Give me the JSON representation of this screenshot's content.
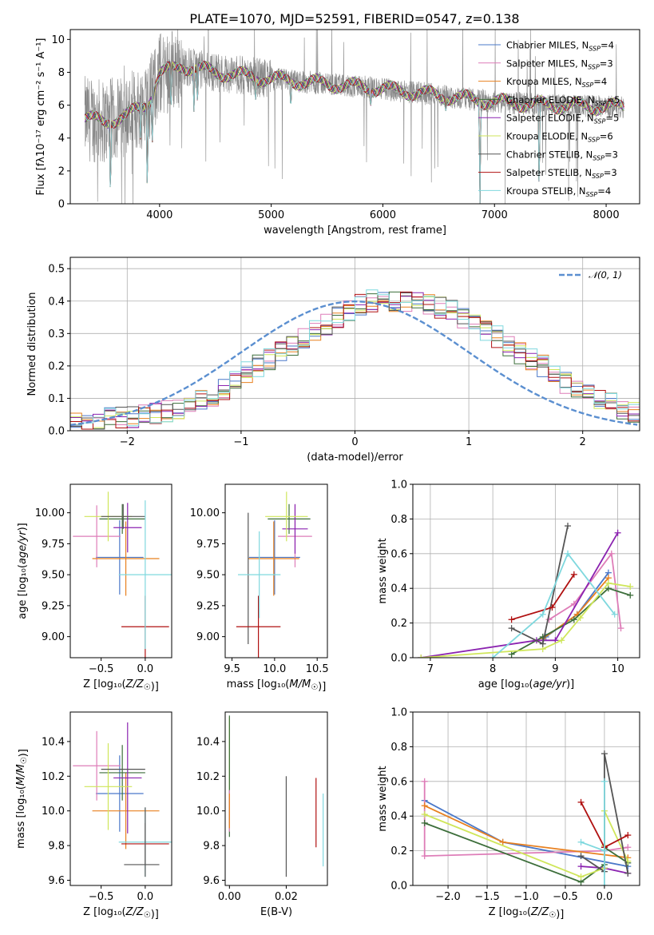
{
  "figure": {
    "title": "PLATE=1070, MJD=52591, FIBERID=0547, z=0.138"
  },
  "colors": {
    "Chabrier MILES": "#4a78c9",
    "Salpeter MILES": "#de7db8",
    "Kroupa MILES": "#e8801f",
    "Chabrier ELODIE": "#3c6e3a",
    "Salpeter ELODIE": "#8b23b0",
    "Kroupa ELODIE": "#cfe65a",
    "Chabrier STELIB": "#555555",
    "Salpeter STELIB": "#b01010",
    "Kroupa STELIB": "#7fd8de",
    "data": "#888888",
    "normal": "#5b8fd0"
  },
  "chart_data": [
    {
      "id": "spectrum",
      "type": "line",
      "title": "PLATE=1070, MJD=52591, FIBERID=0547, z=0.138",
      "xlabel": "wavelength [Angstrom, rest frame]",
      "ylabel": "Flux [fλ10⁻¹⁷ erg cm⁻² s⁻¹ A⁻¹]",
      "xlim": [
        3200,
        8300
      ],
      "ylim": [
        0,
        10.6
      ],
      "xticks": [
        4000,
        5000,
        6000,
        7000,
        8000
      ],
      "yticks": [
        0,
        2,
        4,
        6,
        8,
        10
      ],
      "legend_position": "top-right",
      "legend": [
        {
          "series": "Chabrier MILES",
          "label": "Chabrier MILES, N",
          "sub": "SSP",
          "suffix": "=4"
        },
        {
          "series": "Salpeter MILES",
          "label": "Salpeter MILES, N",
          "sub": "SSP",
          "suffix": "=3"
        },
        {
          "series": "Kroupa MILES",
          "label": "Kroupa MILES, N",
          "sub": "SSP",
          "suffix": "=4"
        },
        {
          "series": "Chabrier ELODIE",
          "label": "Chabrier ELODIE, N",
          "sub": "SSP",
          "suffix": "=5"
        },
        {
          "series": "Salpeter ELODIE",
          "label": "Salpeter ELODIE, N",
          "sub": "SSP",
          "suffix": "=5"
        },
        {
          "series": "Kroupa ELODIE",
          "label": "Kroupa ELODIE, N",
          "sub": "SSP",
          "suffix": "=6"
        },
        {
          "series": "Chabrier STELIB",
          "label": "Chabrier STELIB, N",
          "sub": "SSP",
          "suffix": "=3"
        },
        {
          "series": "Salpeter STELIB",
          "label": "Salpeter STELIB, N",
          "sub": "SSP",
          "suffix": "=3"
        },
        {
          "series": "Kroupa STELIB",
          "label": "Kroupa STELIB, N",
          "sub": "SSP",
          "suffix": "=4"
        }
      ],
      "continuum": [
        [
          3330,
          5.2
        ],
        [
          3500,
          5.0
        ],
        [
          3700,
          5.3
        ],
        [
          3900,
          6.2
        ],
        [
          4000,
          7.9
        ],
        [
          4200,
          8.4
        ],
        [
          4500,
          8.0
        ],
        [
          5000,
          7.6
        ],
        [
          5500,
          7.3
        ],
        [
          6000,
          7.0
        ],
        [
          6500,
          6.6
        ],
        [
          7000,
          6.2
        ],
        [
          7500,
          6.0
        ],
        [
          8000,
          5.9
        ],
        [
          8160,
          5.9
        ]
      ],
      "absorption_lines": [
        [
          3560,
          0.0
        ],
        [
          3830,
          3.4
        ],
        [
          3890,
          0.0
        ],
        [
          3934,
          3.0
        ],
        [
          4102,
          5.4
        ],
        [
          4308,
          5.6
        ],
        [
          4340,
          5.8
        ],
        [
          4861,
          6.2
        ],
        [
          5175,
          5.6
        ],
        [
          5890,
          5.8
        ],
        [
          6563,
          5.6
        ],
        [
          6870,
          0.0
        ],
        [
          7400,
          0.0
        ]
      ]
    },
    {
      "id": "residuals",
      "type": "bar",
      "xlabel": "(data-model)/error",
      "ylabel": "Normed distribution",
      "xlim": [
        -2.5,
        2.5
      ],
      "ylim": [
        0,
        0.535
      ],
      "xticks": [
        -2,
        -1,
        0,
        1,
        2
      ],
      "yticks": [
        0.0,
        0.1,
        0.2,
        0.3,
        0.4,
        0.5
      ],
      "legend": "𝒩(0, 1)",
      "legend_position": "top-right",
      "bin_width": 0.1,
      "bin_start": -2.5,
      "reference_values": [
        0.02,
        0.02,
        0.03,
        0.04,
        0.04,
        0.04,
        0.05,
        0.05,
        0.06,
        0.07,
        0.09,
        0.1,
        0.11,
        0.13,
        0.15,
        0.18,
        0.2,
        0.22,
        0.24,
        0.26,
        0.29,
        0.31,
        0.33,
        0.35,
        0.37,
        0.39,
        0.4,
        0.4,
        0.4,
        0.4,
        0.4,
        0.39,
        0.38,
        0.37,
        0.35,
        0.33,
        0.31,
        0.29,
        0.26,
        0.24,
        0.22,
        0.2,
        0.18,
        0.15,
        0.13,
        0.11,
        0.1,
        0.09,
        0.07,
        0.06
      ]
    },
    {
      "id": "age-vs-z",
      "type": "scatter",
      "xlabel": "Z [log₁₀(Z/Z☉)]",
      "ylabel": "age  [log₁₀(age/yr)]",
      "xlim": [
        -0.85,
        0.3
      ],
      "ylim": [
        8.83,
        10.23
      ],
      "xticks": [
        -0.5,
        0.0
      ],
      "yticks": [
        9.0,
        9.25,
        9.5,
        9.75,
        10.0
      ],
      "points": [
        {
          "series": "Chabrier MILES",
          "x": -0.29,
          "xerr": 0.27,
          "y": 9.64,
          "yerr": 0.3
        },
        {
          "series": "Salpeter MILES",
          "x": -0.55,
          "xerr": 0.27,
          "y": 9.81,
          "yerr": 0.25
        },
        {
          "series": "Kroupa MILES",
          "x": -0.22,
          "xerr": 0.38,
          "y": 9.63,
          "yerr": 0.3
        },
        {
          "series": "Chabrier ELODIE",
          "x": -0.26,
          "xerr": 0.26,
          "y": 9.95,
          "yerr": 0.12
        },
        {
          "series": "Salpeter ELODIE",
          "x": -0.2,
          "xerr": 0.16,
          "y": 9.88,
          "yerr": 0.2
        },
        {
          "series": "Kroupa ELODIE",
          "x": -0.42,
          "xerr": 0.27,
          "y": 9.97,
          "yerr": 0.2
        },
        {
          "series": "Chabrier STELIB",
          "x": -0.25,
          "xerr": 0.25,
          "y": 9.97,
          "yerr": 0.1
        },
        {
          "series": "Salpeter STELIB",
          "x": 0.0,
          "xerr": 0.27,
          "y": 9.08,
          "yerr": 0.25
        },
        {
          "series": "Kroupa STELIB",
          "x": 0.0,
          "xerr": 0.3,
          "y": 9.5,
          "yerr": 0.6
        }
      ]
    },
    {
      "id": "age-vs-mass",
      "type": "scatter",
      "xlabel": "mass [log₁₀(M/M☉)]",
      "ylabel": "",
      "xlim": [
        9.42,
        10.62
      ],
      "ylim": [
        8.83,
        10.23
      ],
      "xticks": [
        9.5,
        10.0,
        10.5
      ],
      "yticks": [
        9.0,
        9.25,
        9.5,
        9.75,
        10.0
      ],
      "points": [
        {
          "series": "Chabrier MILES",
          "x": 10.0,
          "xerr": 0.3,
          "y": 9.64,
          "yerr": 0.3
        },
        {
          "series": "Salpeter MILES",
          "x": 10.24,
          "xerr": 0.2,
          "y": 9.81,
          "yerr": 0.25
        },
        {
          "series": "Kroupa MILES",
          "x": 9.99,
          "xerr": 0.3,
          "y": 9.63,
          "yerr": 0.3
        },
        {
          "series": "Chabrier ELODIE",
          "x": 10.17,
          "xerr": 0.25,
          "y": 9.95,
          "yerr": 0.12
        },
        {
          "series": "Salpeter ELODIE",
          "x": 10.24,
          "xerr": 0.15,
          "y": 9.87,
          "yerr": 0.2
        },
        {
          "series": "Kroupa ELODIE",
          "x": 10.14,
          "xerr": 0.25,
          "y": 9.97,
          "yerr": 0.2
        },
        {
          "series": "Chabrier STELIB",
          "x": 9.69,
          "xerr": 0.0,
          "y": 9.47,
          "yerr": 0.53
        },
        {
          "series": "Salpeter STELIB",
          "x": 9.81,
          "xerr": 0.26,
          "y": 9.08,
          "yerr": 0.25
        },
        {
          "series": "Kroupa STELIB",
          "x": 9.82,
          "xerr": 0.25,
          "y": 9.5,
          "yerr": 0.35
        }
      ]
    },
    {
      "id": "massweight-vs-age",
      "type": "line",
      "xlabel": "age  [log₁₀(age/yr)]",
      "ylabel": "mass weight",
      "xlim": [
        6.72,
        10.35
      ],
      "ylim": [
        0,
        1.0
      ],
      "xticks": [
        7,
        8,
        9,
        10
      ],
      "yticks": [
        0.0,
        0.2,
        0.4,
        0.6,
        0.8,
        1.0
      ],
      "series": [
        {
          "name": "Chabrier MILES",
          "x": [
            8.85,
            9.35,
            9.85
          ],
          "y": [
            0.12,
            0.25,
            0.49
          ]
        },
        {
          "name": "Salpeter MILES",
          "x": [
            8.9,
            9.3,
            9.9,
            10.05
          ],
          "y": [
            0.22,
            0.31,
            0.6,
            0.17
          ]
        },
        {
          "name": "Kroupa MILES",
          "x": [
            8.8,
            9.35,
            9.85
          ],
          "y": [
            0.11,
            0.25,
            0.46
          ]
        },
        {
          "name": "Chabrier ELODIE",
          "x": [
            8.3,
            8.8,
            9.3,
            9.85,
            10.2
          ],
          "y": [
            0.02,
            0.12,
            0.22,
            0.4,
            0.36
          ]
        },
        {
          "name": "Salpeter ELODIE",
          "x": [
            6.85,
            8.7,
            9.0,
            10.0
          ],
          "y": [
            0.0,
            0.1,
            0.1,
            0.72
          ]
        },
        {
          "name": "Kroupa ELODIE",
          "x": [
            6.85,
            8.8,
            9.1,
            9.4,
            9.85,
            10.2
          ],
          "y": [
            0.0,
            0.05,
            0.1,
            0.23,
            0.43,
            0.41
          ]
        },
        {
          "name": "Chabrier STELIB",
          "x": [
            8.3,
            8.8,
            9.2
          ],
          "y": [
            0.17,
            0.08,
            0.76
          ]
        },
        {
          "name": "Salpeter STELIB",
          "x": [
            8.3,
            8.95,
            9.3
          ],
          "y": [
            0.22,
            0.29,
            0.48
          ]
        },
        {
          "name": "Kroupa STELIB",
          "x": [
            8.0,
            8.8,
            9.2,
            9.95
          ],
          "y": [
            0.0,
            0.25,
            0.6,
            0.25
          ]
        }
      ]
    },
    {
      "id": "mass-vs-z",
      "type": "scatter",
      "xlabel": "Z [log₁₀(Z/Z☉)]",
      "ylabel": "mass [log₁₀(M/M☉)]",
      "xlim": [
        -0.85,
        0.3
      ],
      "ylim": [
        9.57,
        10.57
      ],
      "xticks": [
        -0.5,
        0.0
      ],
      "yticks": [
        9.6,
        9.8,
        10.0,
        10.2,
        10.4
      ],
      "points": [
        {
          "series": "Chabrier MILES",
          "x": -0.29,
          "xerr": 0.27,
          "y": 10.1,
          "yerr": 0.22
        },
        {
          "series": "Salpeter MILES",
          "x": -0.55,
          "xerr": 0.27,
          "y": 10.26,
          "yerr": 0.2
        },
        {
          "series": "Kroupa MILES",
          "x": -0.22,
          "xerr": 0.38,
          "y": 10.0,
          "yerr": 0.22
        },
        {
          "series": "Chabrier ELODIE",
          "x": -0.26,
          "xerr": 0.26,
          "y": 10.22,
          "yerr": 0.16
        },
        {
          "series": "Salpeter ELODIE",
          "x": -0.2,
          "xerr": 0.16,
          "y": 10.19,
          "yerr": 0.32
        },
        {
          "series": "Kroupa ELODIE",
          "x": -0.42,
          "xerr": 0.27,
          "y": 10.14,
          "yerr": 0.25
        },
        {
          "series": "Chabrier STELIB",
          "x": -0.25,
          "xerr": 0.25,
          "y": 10.24,
          "yerr": 0.0
        },
        {
          "series": "Salpeter STELIB",
          "x": 0.0,
          "xerr": 0.27,
          "y": 9.81,
          "yerr": 0.12
        },
        {
          "series": "Kroupa STELIB",
          "x": 0.0,
          "xerr": 0.3,
          "y": 9.82,
          "yerr": 0.2
        },
        {
          "series": "Chabrier STELIB",
          "x": -0.04,
          "xerr": 0.2,
          "y": 9.69,
          "yerr": 0.0
        },
        {
          "series": "Chabrier STELIB",
          "x": 0.0,
          "xerr": 0.0,
          "y": 9.82,
          "yerr": 0.2
        }
      ]
    },
    {
      "id": "mass-vs-ebv",
      "type": "scatter",
      "xlabel": "E(B-V)",
      "ylabel": "",
      "xlim": [
        -0.0015,
        0.0345
      ],
      "ylim": [
        9.57,
        10.57
      ],
      "xticks": [
        0.0,
        0.02
      ],
      "yticks": [
        9.6,
        9.8,
        10.0,
        10.2,
        10.4
      ],
      "points": [
        {
          "series": "Kroupa ELODIE",
          "x": 0.0,
          "xerr": 0.0,
          "y": 10.22,
          "yerr": 0.32
        },
        {
          "series": "Chabrier ELODIE",
          "x": 0.0,
          "xerr": 0.0,
          "y": 10.2,
          "yerr": 0.35
        },
        {
          "series": "Salpeter MILES",
          "x": 0.0,
          "xerr": 0.0,
          "y": 10.0,
          "yerr": 0.12
        },
        {
          "series": "Kroupa MILES",
          "x": 0.0,
          "xerr": 0.0,
          "y": 10.0,
          "yerr": 0.1
        },
        {
          "series": "Chabrier STELIB",
          "x": 0.02,
          "xerr": 0.0,
          "y": 9.91,
          "yerr": 0.29
        },
        {
          "series": "Salpeter STELIB",
          "x": 0.0305,
          "xerr": 0.0,
          "y": 9.99,
          "yerr": 0.2
        },
        {
          "series": "Kroupa STELIB",
          "x": 0.033,
          "xerr": 0.0,
          "y": 9.89,
          "yerr": 0.21
        }
      ]
    },
    {
      "id": "massweight-vs-z",
      "type": "line",
      "xlabel": "Z [log₁₀(Z/Z☉)]",
      "ylabel": "mass weight",
      "xlim": [
        -2.45,
        0.45
      ],
      "ylim": [
        0,
        1.0
      ],
      "xticks": [
        -2.0,
        -1.5,
        -1.0,
        -0.5,
        0.0
      ],
      "yticks": [
        0.0,
        0.2,
        0.4,
        0.6,
        0.8,
        1.0
      ],
      "series": [
        {
          "name": "Chabrier MILES",
          "x": [
            -2.3,
            -1.3,
            0.3
          ],
          "y": [
            0.49,
            0.25,
            0.11
          ]
        },
        {
          "name": "Salpeter MILES",
          "x": [
            -2.3,
            -2.3,
            0.0,
            0.3
          ],
          "y": [
            0.6,
            0.17,
            0.2,
            0.22
          ]
        },
        {
          "name": "Kroupa MILES",
          "x": [
            -2.3,
            -1.3,
            0.3
          ],
          "y": [
            0.46,
            0.25,
            0.16
          ]
        },
        {
          "name": "Chabrier ELODIE",
          "x": [
            -2.3,
            -0.3,
            0.0,
            0.0,
            0.3
          ],
          "y": [
            0.36,
            0.02,
            0.12,
            0.22,
            0.13
          ]
        },
        {
          "name": "Salpeter ELODIE",
          "x": [
            -0.3,
            0.0,
            0.3
          ],
          "y": [
            0.11,
            0.1,
            0.07
          ]
        },
        {
          "name": "Kroupa ELODIE",
          "x": [
            -2.3,
            -0.3,
            0.0,
            0.0,
            0.0,
            0.3
          ],
          "y": [
            0.41,
            0.05,
            0.1,
            0.23,
            0.43,
            0.14
          ]
        },
        {
          "name": "Chabrier STELIB",
          "x": [
            -0.3,
            0.0,
            0.0,
            0.3
          ],
          "y": [
            0.17,
            0.08,
            0.76,
            0.07
          ]
        },
        {
          "name": "Salpeter STELIB",
          "x": [
            -0.3,
            0.0,
            0.3
          ],
          "y": [
            0.48,
            0.22,
            0.29
          ]
        },
        {
          "name": "Kroupa STELIB",
          "x": [
            -0.3,
            0.0,
            0.0,
            0.0
          ],
          "y": [
            0.25,
            0.2,
            0.6,
            0.0
          ]
        }
      ]
    }
  ]
}
